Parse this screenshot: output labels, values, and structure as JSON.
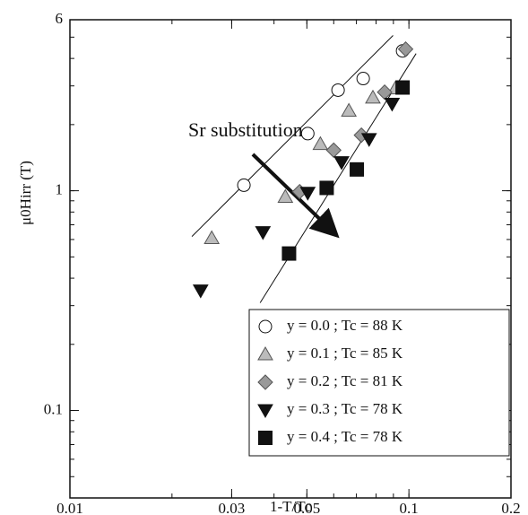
{
  "chart_data": {
    "type": "scatter",
    "xlabel": "1-T/Tc",
    "ylabel": "μ0Hirr (T)",
    "log_x": true,
    "log_y": true,
    "xlim": [
      0.01,
      0.2
    ],
    "ylim": [
      0.04,
      6
    ],
    "xticks": [
      0.01,
      0.03,
      0.05,
      0.1,
      0.2
    ],
    "yticks": [
      0.1,
      1,
      6
    ],
    "annotation": "Sr substitution",
    "legend": "lower right",
    "series": [
      {
        "name": "y = 0.0 ; Tc = 88 K",
        "marker": "circle",
        "color": "#ffffff",
        "x": [
          0.0326,
          0.0503,
          0.0618,
          0.0733,
          0.0958
        ],
        "values": [
          1.06,
          1.82,
          2.87,
          3.24,
          4.33
        ]
      },
      {
        "name": "y = 0.1 ; Tc = 85 K",
        "marker": "triangle",
        "color": "#bbbbbb",
        "x": [
          0.0262,
          0.0432,
          0.0548,
          0.0665,
          0.0783,
          0.0912
        ],
        "values": [
          0.608,
          0.937,
          1.63,
          2.31,
          2.65,
          2.92
        ]
      },
      {
        "name": "y = 0.2 ; Tc = 81 K",
        "marker": "diamond",
        "color": "#999999",
        "x": [
          0.0476,
          0.06,
          0.0724,
          0.0848,
          0.0978
        ],
        "values": [
          0.99,
          1.53,
          1.79,
          2.81,
          4.41
        ]
      },
      {
        "name": "y = 0.3 ; Tc = 78 K",
        "marker": "triangle-down",
        "color": "#111111",
        "x": [
          0.0243,
          0.0371,
          0.0503,
          0.0633,
          0.0763,
          0.0892
        ],
        "values": [
          0.352,
          0.649,
          0.98,
          1.35,
          1.72,
          2.49
        ]
      },
      {
        "name": "y = 0.4 ; Tc = 78 K",
        "marker": "square",
        "color": "#111111",
        "x": [
          0.0443,
          0.0572,
          0.0702,
          0.0958
        ],
        "values": [
          0.518,
          1.03,
          1.25,
          2.95
        ]
      }
    ],
    "fit_lines": [
      {
        "x": [
          0.0229,
          0.0898
        ],
        "values": [
          0.619,
          5.09
        ]
      },
      {
        "x": [
          0.0364,
          0.105
        ],
        "values": [
          0.309,
          4.21
        ]
      }
    ]
  }
}
